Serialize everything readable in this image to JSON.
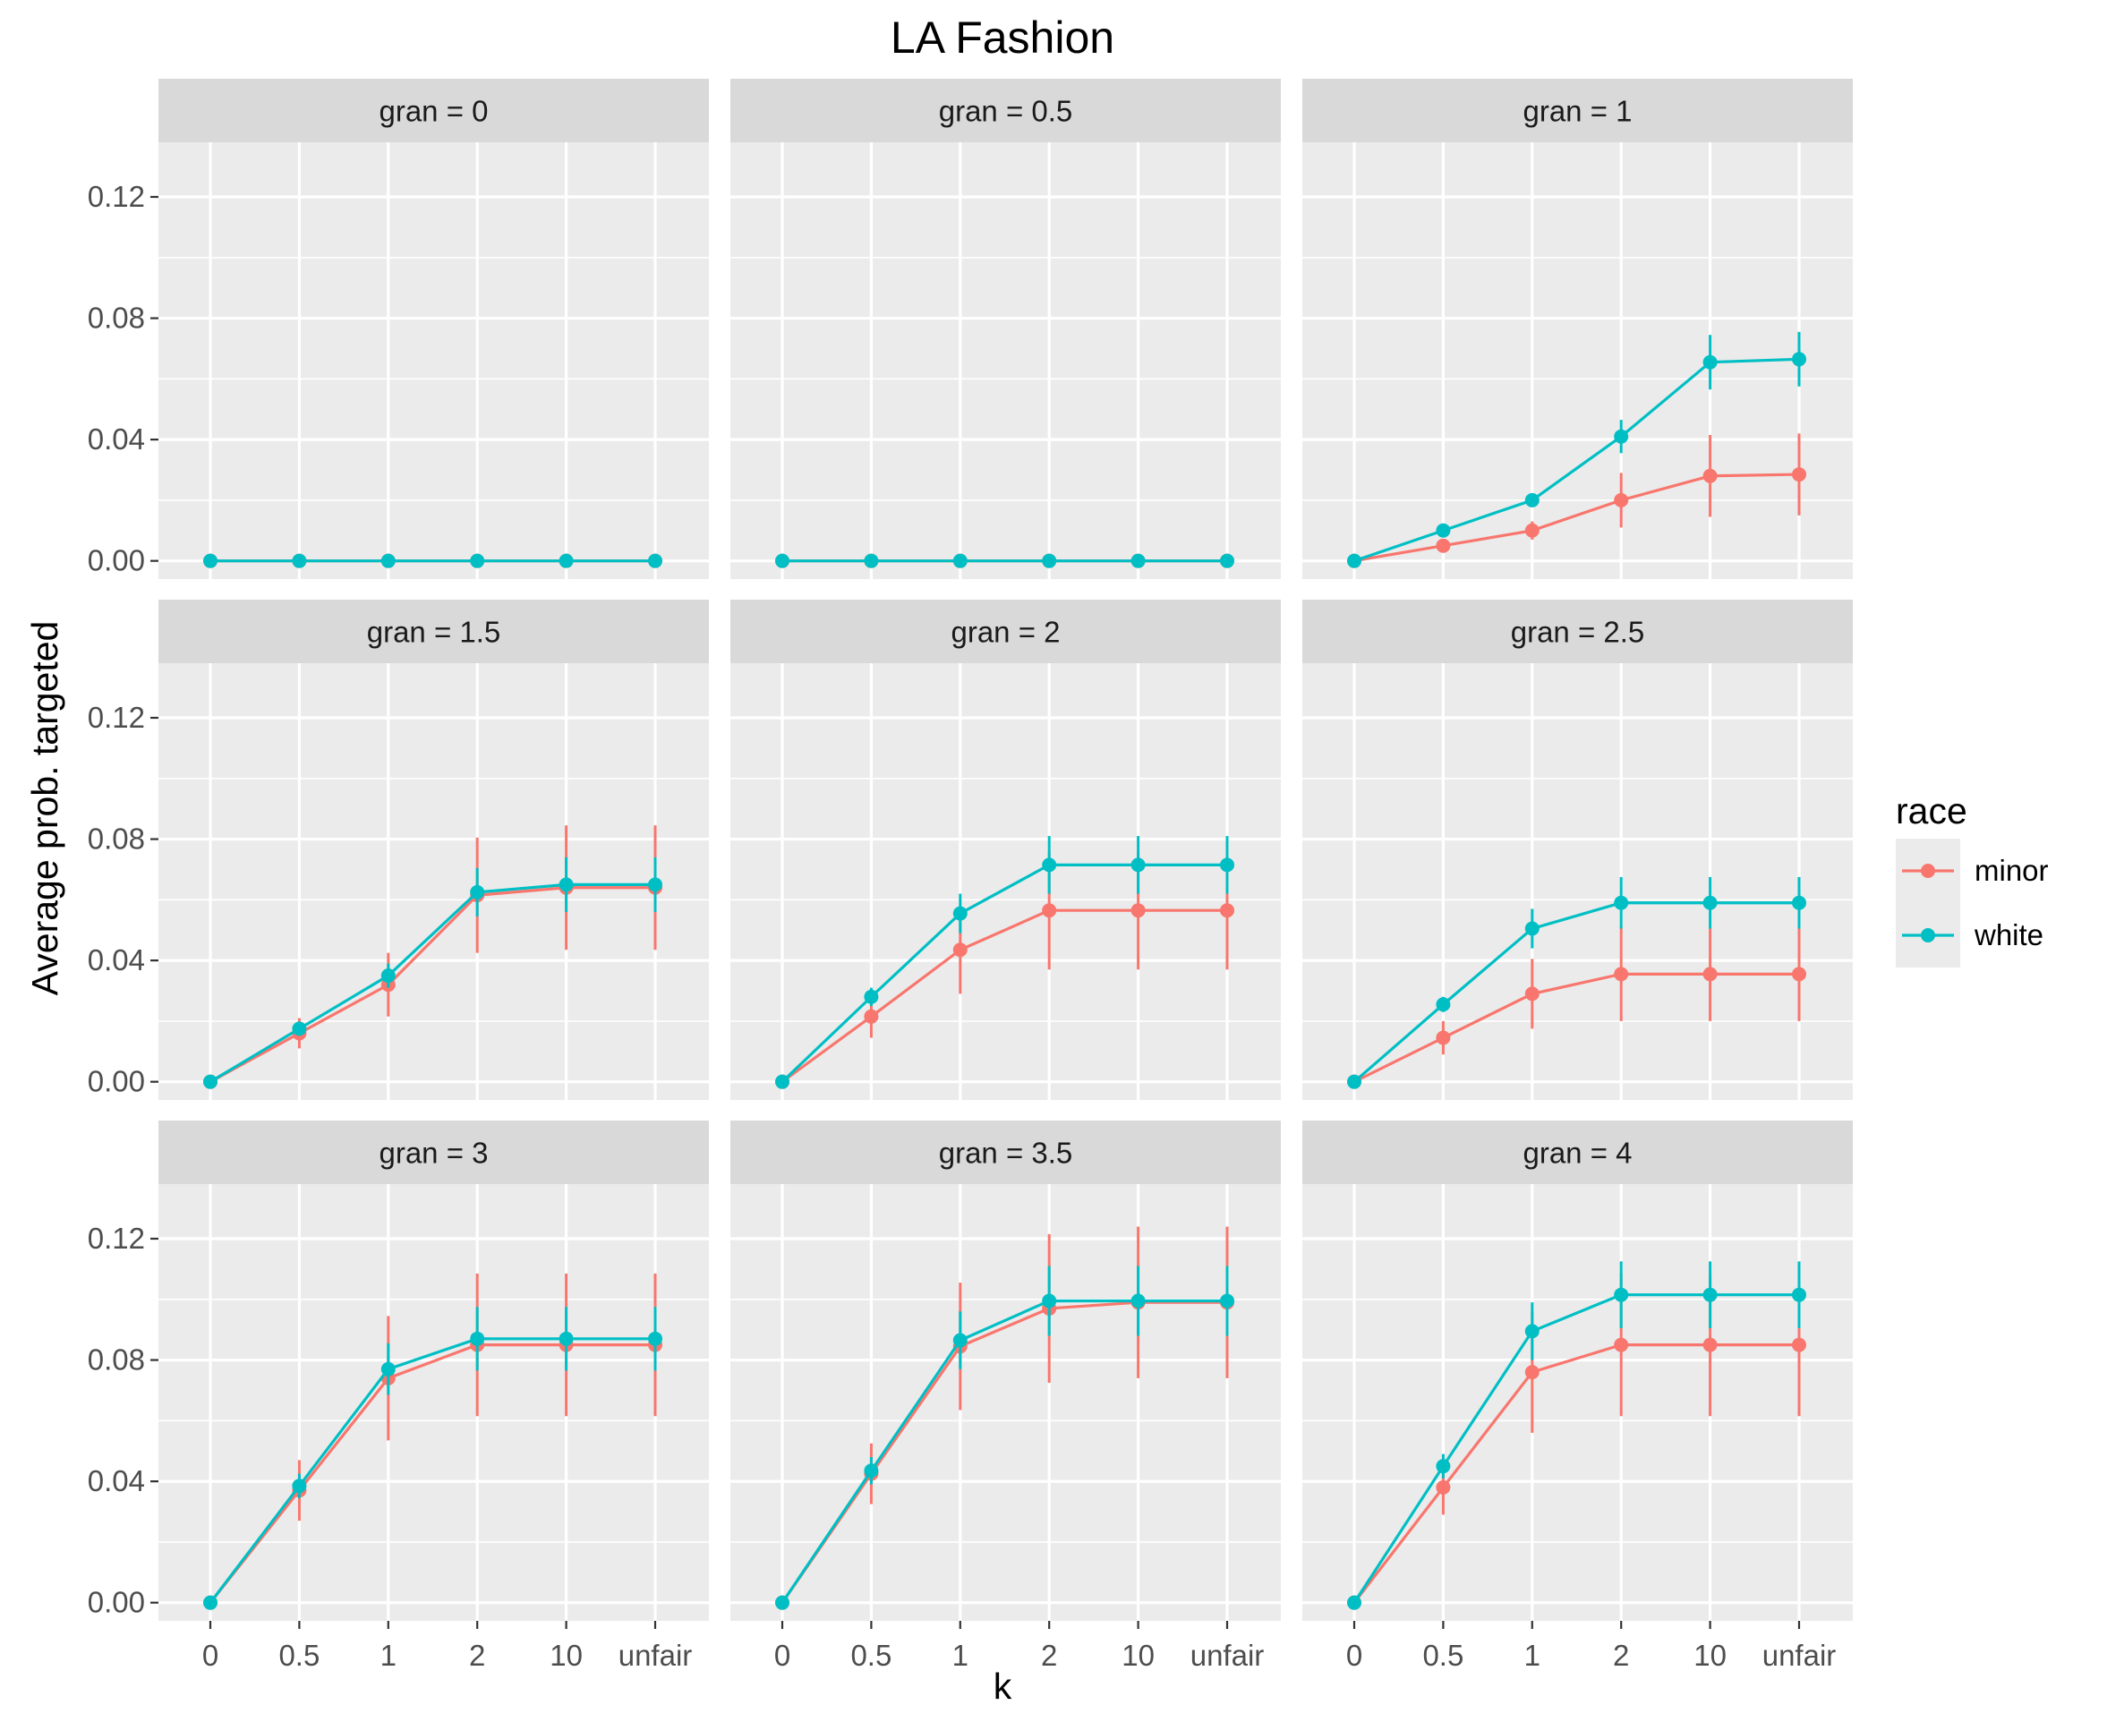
{
  "chart_data": {
    "type": "line",
    "title": "LA Fashion",
    "xlabel": "k",
    "ylabel": "Average prob. targeted",
    "categories": [
      "0",
      "0.5",
      "1",
      "2",
      "10",
      "unfair"
    ],
    "y_ticks": [
      "0.00",
      "0.04",
      "0.08",
      "0.12"
    ],
    "y_tick_values": [
      0,
      0.04,
      0.08,
      0.12
    ],
    "ylim": [
      -0.006,
      0.138
    ],
    "grid": true,
    "legend": {
      "title": "race",
      "position": "right",
      "entries": [
        {
          "name": "minor",
          "color": "#F8766D"
        },
        {
          "name": "white",
          "color": "#00BFC4"
        }
      ]
    },
    "facets": [
      {
        "label": "gran =  0",
        "series": [
          {
            "name": "minor",
            "values": [
              0,
              0,
              0,
              0,
              0,
              0
            ],
            "err": [
              0,
              0,
              0,
              0,
              0,
              0
            ]
          },
          {
            "name": "white",
            "values": [
              0,
              0,
              0,
              0,
              0,
              0
            ],
            "err": [
              0,
              0,
              0,
              0,
              0,
              0
            ]
          }
        ]
      },
      {
        "label": "gran =  0.5",
        "series": [
          {
            "name": "minor",
            "values": [
              0,
              0,
              0,
              0,
              0,
              0
            ],
            "err": [
              0,
              0,
              0,
              0,
              0,
              0
            ]
          },
          {
            "name": "white",
            "values": [
              0,
              0,
              0,
              0,
              0,
              0
            ],
            "err": [
              0,
              0,
              0,
              0,
              0,
              0
            ]
          }
        ]
      },
      {
        "label": "gran =  1",
        "series": [
          {
            "name": "minor",
            "values": [
              0,
              0.005,
              0.01,
              0.02,
              0.028,
              0.0285
            ],
            "err": [
              0,
              0.001,
              0.003,
              0.009,
              0.0135,
              0.0135
            ]
          },
          {
            "name": "white",
            "values": [
              0,
              0.01,
              0.02,
              0.041,
              0.0655,
              0.0665
            ],
            "err": [
              0,
              0.001,
              0.002,
              0.0055,
              0.009,
              0.009
            ]
          }
        ]
      },
      {
        "label": "gran =  1.5",
        "series": [
          {
            "name": "minor",
            "values": [
              0,
              0.016,
              0.032,
              0.0615,
              0.064,
              0.064
            ],
            "err": [
              0,
              0.005,
              0.0105,
              0.019,
              0.0205,
              0.0205
            ]
          },
          {
            "name": "white",
            "values": [
              0,
              0.0175,
              0.035,
              0.0625,
              0.065,
              0.065
            ],
            "err": [
              0,
              0.002,
              0.004,
              0.008,
              0.009,
              0.009
            ]
          }
        ]
      },
      {
        "label": "gran =  2",
        "series": [
          {
            "name": "minor",
            "values": [
              0,
              0.0215,
              0.0435,
              0.0565,
              0.0565,
              0.0565
            ],
            "err": [
              0,
              0.007,
              0.0145,
              0.0195,
              0.0195,
              0.0195
            ]
          },
          {
            "name": "white",
            "values": [
              0,
              0.028,
              0.0555,
              0.0715,
              0.0715,
              0.0715
            ],
            "err": [
              0,
              0.003,
              0.0065,
              0.0095,
              0.0095,
              0.0095
            ]
          }
        ]
      },
      {
        "label": "gran =  2.5",
        "series": [
          {
            "name": "minor",
            "values": [
              0,
              0.0145,
              0.029,
              0.0355,
              0.0355,
              0.0355
            ],
            "err": [
              0,
              0.0055,
              0.0115,
              0.0155,
              0.0155,
              0.0155
            ]
          },
          {
            "name": "white",
            "values": [
              0,
              0.0255,
              0.0505,
              0.059,
              0.059,
              0.059
            ],
            "err": [
              0,
              0.0025,
              0.0065,
              0.0085,
              0.0085,
              0.0085
            ]
          }
        ]
      },
      {
        "label": "gran =  3",
        "series": [
          {
            "name": "minor",
            "values": [
              0,
              0.037,
              0.074,
              0.085,
              0.085,
              0.085
            ],
            "err": [
              0,
              0.01,
              0.0205,
              0.0235,
              0.0235,
              0.0235
            ]
          },
          {
            "name": "white",
            "values": [
              0,
              0.0385,
              0.077,
              0.087,
              0.087,
              0.087
            ],
            "err": [
              0,
              0.004,
              0.0085,
              0.0105,
              0.0105,
              0.0105
            ]
          }
        ]
      },
      {
        "label": "gran =  3.5",
        "series": [
          {
            "name": "minor",
            "values": [
              0,
              0.0425,
              0.0845,
              0.097,
              0.099,
              0.099
            ],
            "err": [
              0,
              0.01,
              0.021,
              0.0245,
              0.025,
              0.025
            ]
          },
          {
            "name": "white",
            "values": [
              0,
              0.0435,
              0.0865,
              0.0995,
              0.0995,
              0.0995
            ],
            "err": [
              0,
              0.0045,
              0.0095,
              0.0115,
              0.0115,
              0.0115
            ]
          }
        ]
      },
      {
        "label": "gran =  4",
        "series": [
          {
            "name": "minor",
            "values": [
              0,
              0.038,
              0.076,
              0.085,
              0.085,
              0.085
            ],
            "err": [
              0,
              0.009,
              0.02,
              0.0235,
              0.0235,
              0.0235
            ]
          },
          {
            "name": "white",
            "values": [
              0,
              0.045,
              0.0895,
              0.1015,
              0.1015,
              0.1015
            ],
            "err": [
              0,
              0.004,
              0.0095,
              0.011,
              0.011,
              0.011
            ]
          }
        ]
      }
    ]
  }
}
